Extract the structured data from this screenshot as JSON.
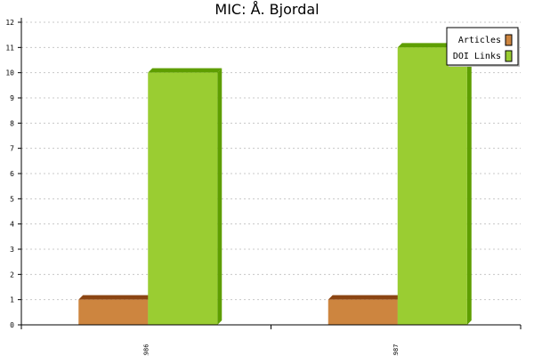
{
  "chart_data": {
    "type": "bar",
    "title": "MIC: Å. Bjordal",
    "categories": [
      "1986",
      "1987"
    ],
    "series": [
      {
        "name": "Articles",
        "values": [
          1,
          1
        ],
        "color": "#cd853f",
        "top_color": "#8b4513"
      },
      {
        "name": "DOI Links",
        "values": [
          10,
          11
        ],
        "color": "#9acd32",
        "top_color": "#5e9e00"
      }
    ],
    "ylim": [
      0,
      12
    ],
    "yticks": [
      "0",
      "1",
      "2",
      "3",
      "4",
      "5",
      "6",
      "7",
      "8",
      "9",
      "10",
      "11",
      "12"
    ],
    "grid": true,
    "legend_position": "top-right"
  }
}
